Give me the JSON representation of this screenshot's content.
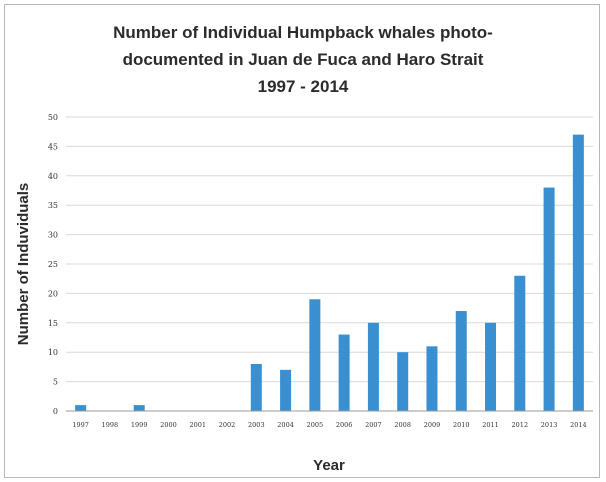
{
  "chart_data": {
    "type": "bar",
    "title_lines": [
      "Number of Individual Humpback whales photo-",
      "documented in Juan de Fuca and Haro Strait",
      "1997 - 2014"
    ],
    "xlabel": "Year",
    "ylabel": "Number of Induviduals",
    "ylim": [
      0,
      50
    ],
    "yticks": [
      0,
      5,
      10,
      15,
      20,
      25,
      30,
      35,
      40,
      45,
      50
    ],
    "grid": true,
    "legend": "none",
    "bar_color": "#3a8fd0",
    "categories": [
      "1997",
      "1998",
      "1999",
      "2000",
      "2001",
      "2002",
      "2003",
      "2004",
      "2005",
      "2006",
      "2007",
      "2008",
      "2009",
      "2010",
      "2011",
      "2012",
      "2013",
      "2014"
    ],
    "values": [
      1,
      0,
      1,
      0,
      0,
      0,
      8,
      7,
      19,
      13,
      15,
      10,
      11,
      17,
      15,
      23,
      38,
      47
    ]
  }
}
